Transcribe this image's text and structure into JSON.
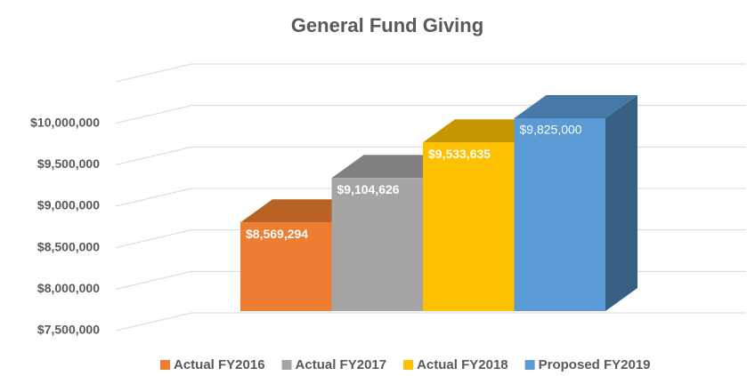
{
  "chart_data": {
    "type": "bar3d",
    "title": "General Fund Giving",
    "series": [
      {
        "name": "Actual FY2016",
        "color": "#ED7D31",
        "values": [
          8569294
        ],
        "value_labels": [
          "$8,569,294"
        ]
      },
      {
        "name": "Actual FY2017",
        "color": "#A5A5A5",
        "values": [
          9104626
        ],
        "value_labels": [
          "$9,104,626"
        ]
      },
      {
        "name": "Actual FY2018",
        "color": "#FFC000",
        "values": [
          9533635
        ],
        "value_labels": [
          "$9,533,635"
        ]
      },
      {
        "name": "Proposed FY2019",
        "color": "#5B9BD5",
        "values": [
          9825000
        ],
        "value_labels": [
          "$9,825,000"
        ]
      }
    ],
    "ylim": [
      7500000,
      10500000
    ],
    "yticks": [
      {
        "value": 7500000,
        "label": "$7,500,000"
      },
      {
        "value": 8000000,
        "label": "$8,000,000"
      },
      {
        "value": 8500000,
        "label": "$8,500,000"
      },
      {
        "value": 9000000,
        "label": "$9,000,000"
      },
      {
        "value": 9500000,
        "label": "$9,500,000"
      },
      {
        "value": 10000000,
        "label": "$10,000,000"
      }
    ],
    "grid": true,
    "legend": "bottom"
  }
}
